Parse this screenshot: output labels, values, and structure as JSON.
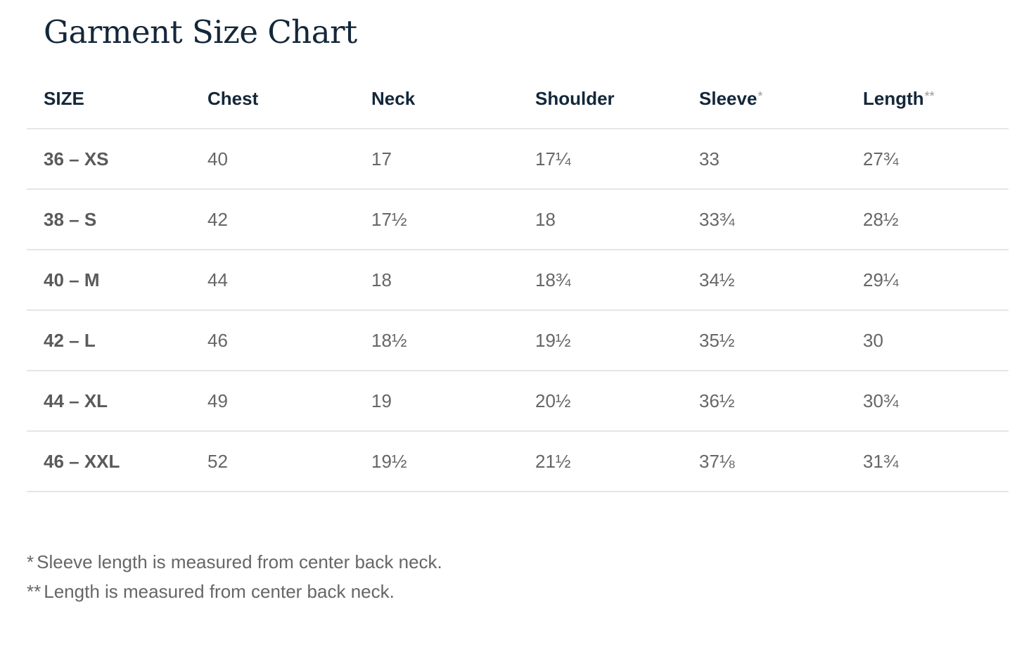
{
  "title": "Garment Size Chart",
  "table": {
    "headers": [
      {
        "label": "SIZE",
        "mark": ""
      },
      {
        "label": "Chest",
        "mark": ""
      },
      {
        "label": "Neck",
        "mark": ""
      },
      {
        "label": "Shoulder",
        "mark": ""
      },
      {
        "label": "Sleeve",
        "mark": "*"
      },
      {
        "label": "Length",
        "mark": "**"
      }
    ],
    "rows": [
      [
        "36 – XS",
        "40",
        "17",
        "17¼",
        "33",
        "27¾"
      ],
      [
        "38 – S",
        "42",
        "17½",
        "18",
        "33¾",
        "28½"
      ],
      [
        "40 – M",
        "44",
        "18",
        "18¾",
        "34½",
        "29¼"
      ],
      [
        "42 – L",
        "46",
        "18½",
        "19½",
        "35½",
        "30"
      ],
      [
        "44 – XL",
        "49",
        "19",
        "20½",
        "36½",
        "30¾"
      ],
      [
        "46 – XXL",
        "52",
        "19½",
        "21½",
        "37⅛",
        "31¾"
      ]
    ]
  },
  "footnotes": [
    {
      "mark": "*",
      "text": "Sleeve length is measured from center back neck."
    },
    {
      "mark": "**",
      "text": "Length is measured from center back neck."
    }
  ],
  "colors": {
    "title": "#14273a",
    "header_text": "#14273a",
    "body_text": "#666666",
    "row_divider": "#e6e6e6",
    "background": "#ffffff"
  }
}
